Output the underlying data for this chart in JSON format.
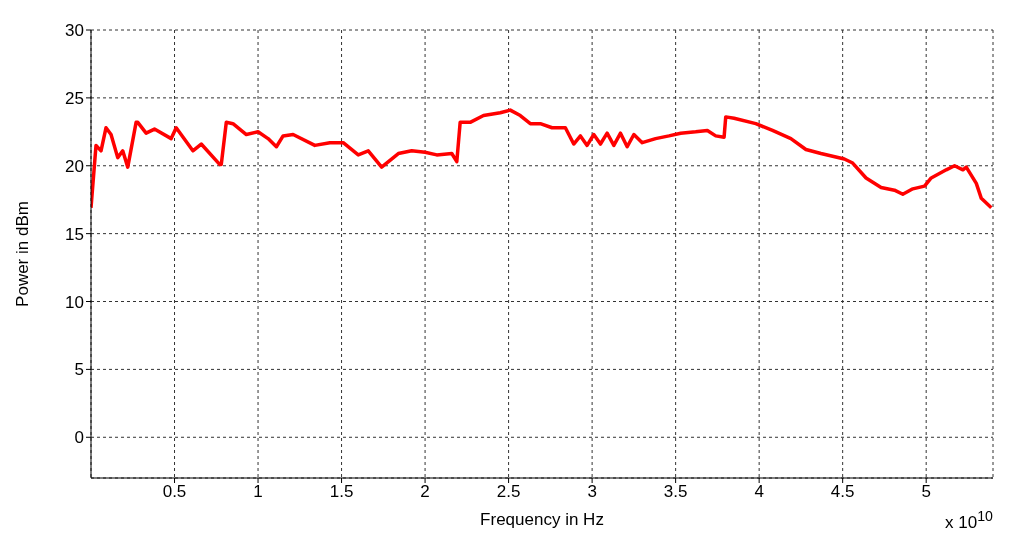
{
  "chart_data": {
    "type": "line",
    "xlabel": "Frequency in Hz",
    "ylabel": "Power in dBm",
    "annotations": [
      "x 10$^{10}$"
    ],
    "x": [
      0.0,
      0.03,
      0.06,
      0.09,
      0.12,
      0.16,
      0.19,
      0.22,
      0.27,
      0.28,
      0.33,
      0.38,
      0.48,
      0.51,
      0.61,
      0.66,
      0.77,
      0.78,
      0.81,
      0.85,
      0.93,
      1.0,
      1.06,
      1.11,
      1.15,
      1.21,
      1.34,
      1.43,
      1.51,
      1.6,
      1.66,
      1.74,
      1.84,
      1.92,
      2.0,
      2.07,
      2.16,
      2.19,
      2.21,
      2.27,
      2.35,
      2.45,
      2.51,
      2.57,
      2.63,
      2.69,
      2.76,
      2.84,
      2.89,
      2.93,
      2.97,
      3.01,
      3.05,
      3.09,
      3.13,
      3.17,
      3.21,
      3.25,
      3.3,
      3.38,
      3.46,
      3.53,
      3.62,
      3.69,
      3.74,
      3.79,
      3.8,
      3.85,
      3.98,
      4.08,
      4.19,
      4.28,
      4.37,
      4.51,
      4.56,
      4.64,
      4.73,
      4.81,
      4.86,
      4.92,
      4.99,
      5.03,
      5.12,
      5.17,
      5.22,
      5.24,
      5.3,
      5.33,
      5.39
    ],
    "series": [
      {
        "color": "#ff0000",
        "values": [
          16.9,
          21.5,
          21.1,
          22.8,
          22.3,
          20.6,
          21.1,
          19.9,
          23.2,
          23.2,
          22.4,
          22.7,
          22.0,
          22.8,
          21.1,
          21.6,
          20.1,
          20.1,
          23.2,
          23.1,
          22.3,
          22.5,
          22.0,
          21.4,
          22.2,
          22.3,
          21.5,
          21.7,
          21.7,
          20.8,
          21.1,
          19.9,
          20.9,
          21.1,
          21.0,
          20.8,
          20.9,
          20.3,
          23.2,
          23.2,
          23.7,
          23.9,
          24.1,
          23.7,
          23.1,
          23.1,
          22.8,
          22.8,
          21.6,
          22.2,
          21.5,
          22.3,
          21.6,
          22.4,
          21.5,
          22.4,
          21.4,
          22.3,
          21.7,
          22.0,
          22.2,
          22.4,
          22.5,
          22.6,
          22.2,
          22.1,
          23.6,
          23.5,
          23.1,
          22.6,
          22.0,
          21.2,
          20.9,
          20.5,
          20.2,
          19.1,
          18.4,
          18.2,
          17.9,
          18.3,
          18.5,
          19.1,
          19.7,
          20.0,
          19.7,
          19.9,
          18.7,
          17.6,
          16.9
        ]
      }
    ],
    "xlim": [
      0,
      5.4
    ],
    "xticks": [
      0.5,
      1,
      1.5,
      2,
      2.5,
      3,
      3.5,
      4,
      4.5,
      5
    ],
    "ylim": [
      -3,
      30
    ],
    "yticks": [
      0,
      5,
      10,
      15,
      20,
      25,
      30
    ],
    "grid": true,
    "marker": "none",
    "line_style": "solid"
  }
}
